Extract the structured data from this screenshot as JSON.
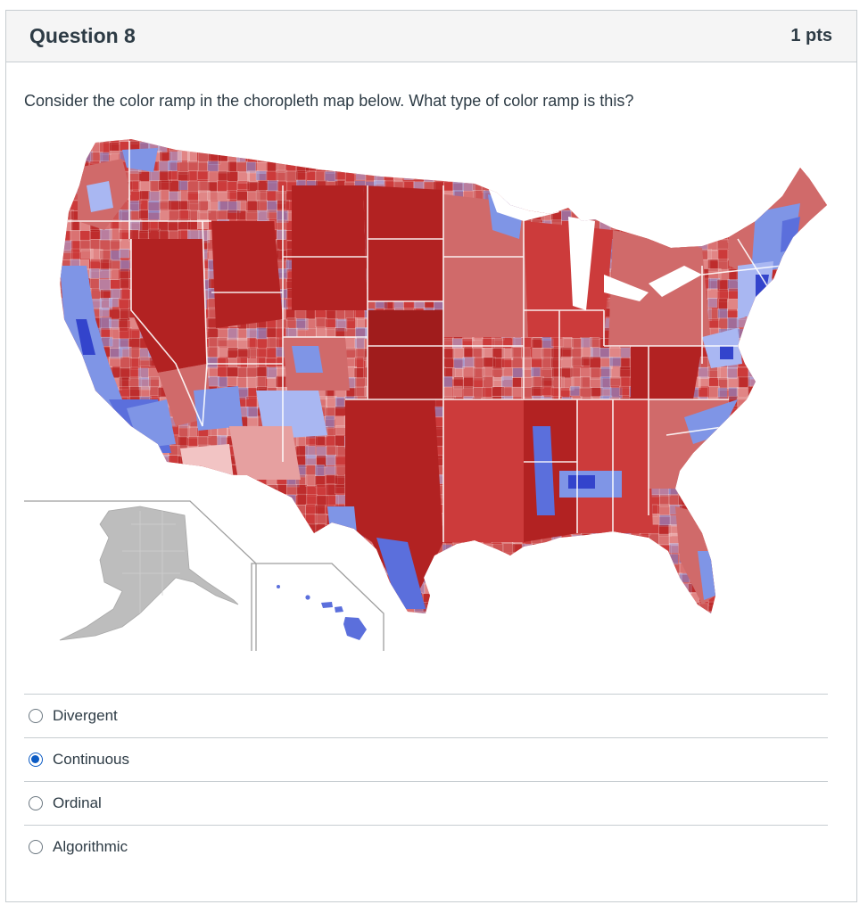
{
  "question": {
    "title": "Question 8",
    "points": "1 pts",
    "text": "Consider the color ramp in the choropleth map below.  What type of color ramp is this?"
  },
  "map": {
    "description_icon": "us-county-choropleth-map",
    "colors": {
      "dark_red": "#b22222",
      "red": "#cc3b3b",
      "mid_red": "#d06a6a",
      "light_red": "#e6a0a0",
      "pale_red": "#f2c4c4",
      "light_blue": "#a9b7f2",
      "mid_blue": "#7f95e6",
      "blue": "#5b6fdc",
      "dark_blue": "#3344cc",
      "grey": "#bdbdbd"
    }
  },
  "answers": [
    {
      "label": "Divergent",
      "selected": false
    },
    {
      "label": "Continuous",
      "selected": true
    },
    {
      "label": "Ordinal",
      "selected": false
    },
    {
      "label": "Algorithmic",
      "selected": false
    }
  ]
}
